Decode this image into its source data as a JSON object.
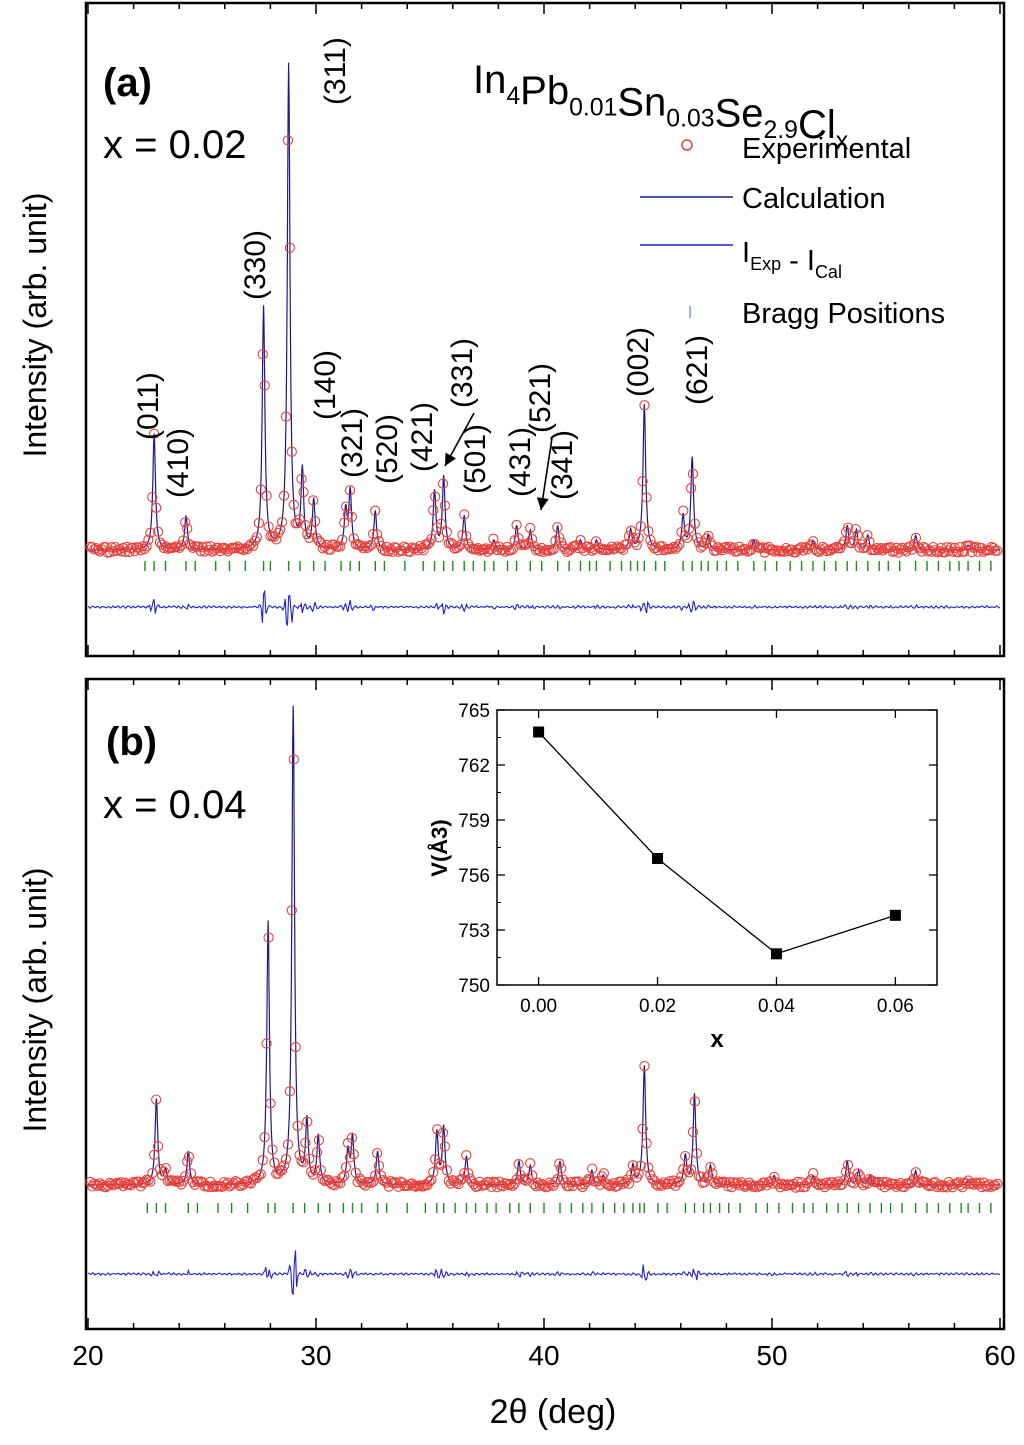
{
  "figure": {
    "xaxis": {
      "label": "2θ (deg)",
      "range": [
        20,
        60
      ],
      "ticks": [
        20,
        30,
        40,
        50,
        60
      ]
    },
    "colors": {
      "experimental": "#e8403a",
      "calculation": "#1a1a8c",
      "difference": "#2020d0",
      "bragg": "#1e8a1e",
      "inset": "#000000"
    }
  },
  "panels": [
    {
      "id": "a",
      "tag": "(a)",
      "x_text": "x = 0.02",
      "ylabel": "Intensity (arb. unit)",
      "formula": [
        {
          "t": "In",
          "sub": false
        },
        {
          "t": "4",
          "sub": true
        },
        {
          "t": "Pb",
          "sub": false
        },
        {
          "t": "0.01",
          "sub": true
        },
        {
          "t": "Sn",
          "sub": false
        },
        {
          "t": "0.03",
          "sub": true
        },
        {
          "t": "Se",
          "sub": false
        },
        {
          "t": "2.9",
          "sub": true
        },
        {
          "t": "Cl",
          "sub": false
        },
        {
          "t": "x",
          "sub": true
        }
      ],
      "legend": [
        {
          "kind": "marker",
          "label": [
            {
              "t": "Experimental",
              "sub": false
            }
          ]
        },
        {
          "kind": "line",
          "label": [
            {
              "t": "Calculation",
              "sub": false
            }
          ]
        },
        {
          "kind": "line2",
          "label": [
            {
              "t": "I",
              "sub": false
            },
            {
              "t": "Exp",
              "sub": true
            },
            {
              "t": " - I",
              "sub": false
            },
            {
              "t": "Cal",
              "sub": true
            }
          ]
        },
        {
          "kind": "tick",
          "label": [
            {
              "t": "Bragg Positions",
              "sub": false
            }
          ]
        }
      ],
      "hkl": [
        {
          "text": "(011)",
          "x": 22.9
        },
        {
          "text": "(410)",
          "x": 24.4
        },
        {
          "text": "(330)",
          "x": 27.6
        },
        {
          "text": "(311)",
          "x": 30.2
        },
        {
          "text": "(140)",
          "x": 30.5
        },
        {
          "text": "(321)",
          "x": 31.7
        },
        {
          "text": "(520)",
          "x": 33.1
        },
        {
          "text": "(421)",
          "x": 34.8
        },
        {
          "text": "(331)",
          "x": 37.0
        },
        {
          "text": "(501)",
          "x": 36.8
        },
        {
          "text": "(431)",
          "x": 38.8
        },
        {
          "text": "(521)",
          "x": 40.2
        },
        {
          "text": "(341)",
          "x": 40.8
        },
        {
          "text": "(002)",
          "x": 44.2
        },
        {
          "text": "(621)",
          "x": 46.8
        }
      ]
    },
    {
      "id": "b",
      "tag": "(b)",
      "x_text": "x = 0.04",
      "ylabel": "Intensity (arb. unit)"
    }
  ],
  "chart_data": [
    {
      "type": "scatter",
      "panel": "a",
      "series": [
        {
          "name": "Experimental",
          "style": "open-circle"
        },
        {
          "name": "Calculation",
          "style": "line"
        },
        {
          "name": "I_Exp - I_Cal",
          "style": "line"
        },
        {
          "name": "Bragg Positions",
          "style": "ticks"
        }
      ],
      "baseline": 0.04,
      "peaks": [
        {
          "x": 22.9,
          "h": 0.24
        },
        {
          "x": 24.3,
          "h": 0.07
        },
        {
          "x": 27.7,
          "h": 0.5
        },
        {
          "x": 28.8,
          "h": 1.0
        },
        {
          "x": 29.4,
          "h": 0.16
        },
        {
          "x": 29.9,
          "h": 0.1
        },
        {
          "x": 31.3,
          "h": 0.08
        },
        {
          "x": 31.5,
          "h": 0.12
        },
        {
          "x": 32.6,
          "h": 0.08
        },
        {
          "x": 35.2,
          "h": 0.12
        },
        {
          "x": 35.6,
          "h": 0.15
        },
        {
          "x": 36.5,
          "h": 0.07
        },
        {
          "x": 37.8,
          "h": 0.02
        },
        {
          "x": 38.8,
          "h": 0.05
        },
        {
          "x": 39.4,
          "h": 0.04
        },
        {
          "x": 40.6,
          "h": 0.05
        },
        {
          "x": 41.6,
          "h": 0.02
        },
        {
          "x": 42.3,
          "h": 0.02
        },
        {
          "x": 43.8,
          "h": 0.04
        },
        {
          "x": 44.4,
          "h": 0.3
        },
        {
          "x": 46.1,
          "h": 0.07
        },
        {
          "x": 46.5,
          "h": 0.19
        },
        {
          "x": 47.2,
          "h": 0.03
        },
        {
          "x": 49.2,
          "h": 0.02
        },
        {
          "x": 51.8,
          "h": 0.02
        },
        {
          "x": 53.3,
          "h": 0.05
        },
        {
          "x": 53.7,
          "h": 0.04
        },
        {
          "x": 54.2,
          "h": 0.03
        },
        {
          "x": 56.3,
          "h": 0.03
        },
        {
          "x": 58.6,
          "h": 0.01
        }
      ],
      "bragg": [
        22.5,
        22.9,
        23.4,
        24.3,
        24.7,
        25.6,
        26.2,
        26.9,
        27.7,
        28.0,
        28.8,
        29.3,
        29.9,
        30.4,
        31.1,
        31.5,
        31.9,
        32.6,
        33.0,
        33.9,
        34.7,
        35.2,
        35.6,
        36.0,
        36.5,
        36.9,
        37.4,
        37.8,
        38.4,
        38.8,
        39.4,
        39.9,
        40.6,
        41.1,
        41.6,
        42.0,
        42.3,
        42.9,
        43.4,
        43.8,
        44.1,
        44.4,
        44.9,
        45.3,
        46.1,
        46.5,
        46.9,
        47.2,
        47.6,
        48.0,
        48.5,
        49.2,
        49.7,
        50.2,
        50.8,
        51.3,
        51.8,
        52.3,
        52.8,
        53.3,
        53.7,
        54.2,
        54.7,
        55.1,
        55.6,
        56.3,
        56.8,
        57.3,
        57.8,
        58.2,
        58.6,
        59.1,
        59.6
      ],
      "xlim": [
        20,
        60
      ]
    },
    {
      "type": "scatter",
      "panel": "b",
      "series": [
        {
          "name": "Experimental",
          "style": "open-circle"
        },
        {
          "name": "Calculation",
          "style": "line"
        },
        {
          "name": "I_Exp - I_Cal",
          "style": "line"
        },
        {
          "name": "Bragg Positions",
          "style": "ticks"
        }
      ],
      "baseline": 0.04,
      "peaks": [
        {
          "x": 23.0,
          "h": 0.18
        },
        {
          "x": 23.4,
          "h": 0.03
        },
        {
          "x": 24.4,
          "h": 0.07
        },
        {
          "x": 27.9,
          "h": 0.55
        },
        {
          "x": 29.0,
          "h": 1.0
        },
        {
          "x": 29.6,
          "h": 0.13
        },
        {
          "x": 30.1,
          "h": 0.1
        },
        {
          "x": 31.4,
          "h": 0.07
        },
        {
          "x": 31.6,
          "h": 0.1
        },
        {
          "x": 32.7,
          "h": 0.07
        },
        {
          "x": 35.3,
          "h": 0.11
        },
        {
          "x": 35.6,
          "h": 0.12
        },
        {
          "x": 36.6,
          "h": 0.06
        },
        {
          "x": 38.9,
          "h": 0.05
        },
        {
          "x": 39.4,
          "h": 0.04
        },
        {
          "x": 40.7,
          "h": 0.05
        },
        {
          "x": 42.1,
          "h": 0.03
        },
        {
          "x": 42.6,
          "h": 0.02
        },
        {
          "x": 43.9,
          "h": 0.04
        },
        {
          "x": 44.4,
          "h": 0.25
        },
        {
          "x": 46.2,
          "h": 0.06
        },
        {
          "x": 46.6,
          "h": 0.19
        },
        {
          "x": 47.3,
          "h": 0.04
        },
        {
          "x": 50.1,
          "h": 0.02
        },
        {
          "x": 51.8,
          "h": 0.02
        },
        {
          "x": 53.3,
          "h": 0.05
        },
        {
          "x": 53.8,
          "h": 0.03
        },
        {
          "x": 54.3,
          "h": 0.02
        },
        {
          "x": 56.3,
          "h": 0.03
        },
        {
          "x": 58.6,
          "h": 0.01
        }
      ],
      "bragg": [
        22.6,
        23.0,
        23.4,
        24.4,
        24.8,
        25.7,
        26.3,
        27.0,
        27.9,
        28.2,
        29.0,
        29.5,
        30.1,
        30.6,
        31.2,
        31.6,
        32.0,
        32.7,
        33.1,
        34.0,
        34.8,
        35.3,
        35.6,
        36.1,
        36.6,
        37.0,
        37.5,
        37.9,
        38.5,
        38.9,
        39.4,
        40.0,
        40.7,
        41.2,
        41.7,
        42.1,
        42.6,
        43.1,
        43.5,
        43.9,
        44.2,
        44.4,
        45.0,
        45.4,
        46.2,
        46.6,
        47.0,
        47.3,
        47.7,
        48.1,
        48.6,
        49.3,
        49.8,
        50.3,
        50.9,
        51.4,
        51.8,
        52.4,
        52.9,
        53.3,
        53.8,
        54.3,
        54.8,
        55.2,
        55.7,
        56.3,
        56.8,
        57.3,
        57.8,
        58.3,
        58.6,
        59.1,
        59.6
      ],
      "xlim": [
        20,
        60
      ]
    },
    {
      "type": "line",
      "panel": "inset",
      "x": [
        0.0,
        0.02,
        0.04,
        0.06
      ],
      "values": [
        763.8,
        756.9,
        751.7,
        753.8
      ],
      "xlabel": "x",
      "ylabel": "V(Å3)",
      "xlim": [
        -0.007,
        0.067
      ],
      "ylim": [
        750,
        765
      ],
      "xticks": [
        "0.00",
        "0.02",
        "0.04",
        "0.06"
      ],
      "yticks": [
        "750",
        "753",
        "756",
        "759",
        "762",
        "765"
      ],
      "marker": "filled-square"
    }
  ]
}
